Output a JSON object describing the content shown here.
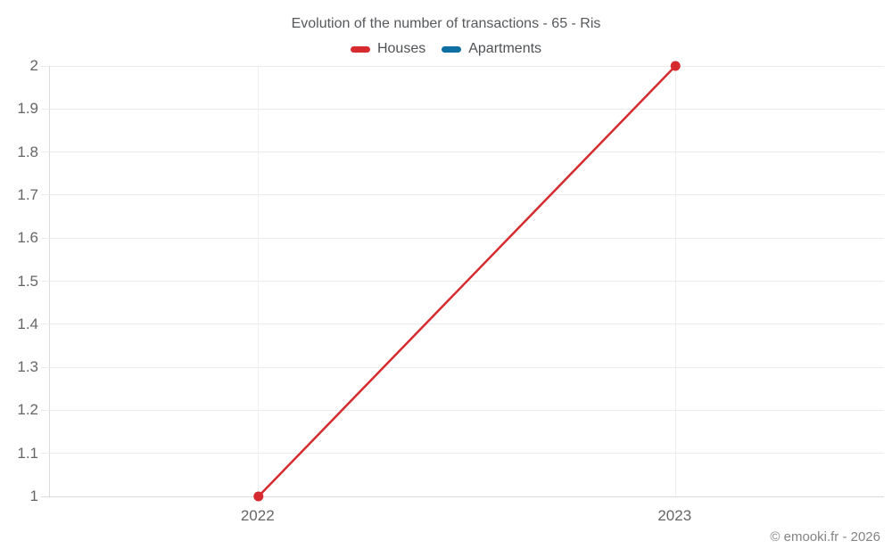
{
  "footer": {
    "copyright": "© emooki.fr - 2026"
  },
  "chart_data": {
    "type": "line",
    "title": "Evolution of the number of transactions - 65 - Ris",
    "categories": [
      "2022",
      "2023"
    ],
    "series": [
      {
        "name": "Houses",
        "color": "#d62b2e",
        "values": [
          1,
          2
        ]
      },
      {
        "name": "Apartments",
        "color": "#0e6fa3",
        "values": []
      }
    ],
    "xlabel": "",
    "ylabel": "",
    "ylim": [
      1,
      2
    ],
    "yticks": [
      "1",
      "1.1",
      "1.2",
      "1.3",
      "1.4",
      "1.5",
      "1.6",
      "1.7",
      "1.8",
      "1.9",
      "2"
    ],
    "grid": true,
    "legend_position": "top",
    "marker": "circle",
    "marker_radius": 5.5,
    "line_width": 2.5
  }
}
